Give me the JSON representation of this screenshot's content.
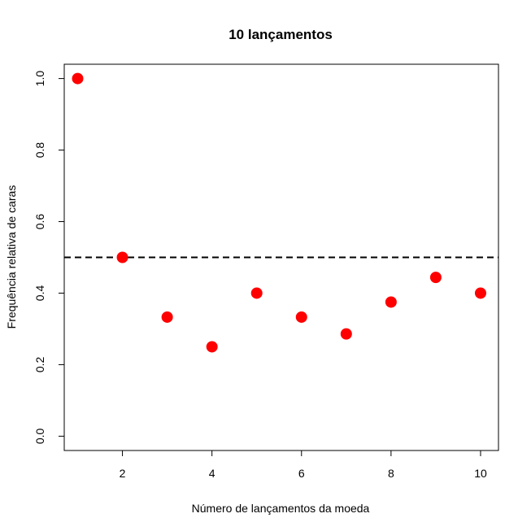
{
  "chart_data": {
    "type": "scatter",
    "title": "10 lançamentos",
    "xlabel": "Número de lançamentos da moeda",
    "ylabel": "Frequência relativa de caras",
    "xlim": [
      0.7,
      10.4
    ],
    "ylim": [
      -0.04,
      1.04
    ],
    "x_ticks": [
      2,
      4,
      6,
      8,
      10
    ],
    "y_ticks": [
      0.0,
      0.2,
      0.4,
      0.6,
      0.8,
      1.0
    ],
    "x_tick_labels": [
      "2",
      "4",
      "6",
      "8",
      "10"
    ],
    "y_tick_labels": [
      "0.0",
      "0.2",
      "0.4",
      "0.6",
      "0.8",
      "1.0"
    ],
    "reference_line": {
      "y": 0.5,
      "style": "dashed",
      "color": "#000000"
    },
    "grid": false,
    "point_color": "#ff0000",
    "x": [
      1,
      2,
      3,
      4,
      5,
      6,
      7,
      8,
      9,
      10
    ],
    "y": [
      1.0,
      0.5,
      0.333,
      0.25,
      0.4,
      0.333,
      0.286,
      0.375,
      0.444,
      0.4
    ]
  }
}
